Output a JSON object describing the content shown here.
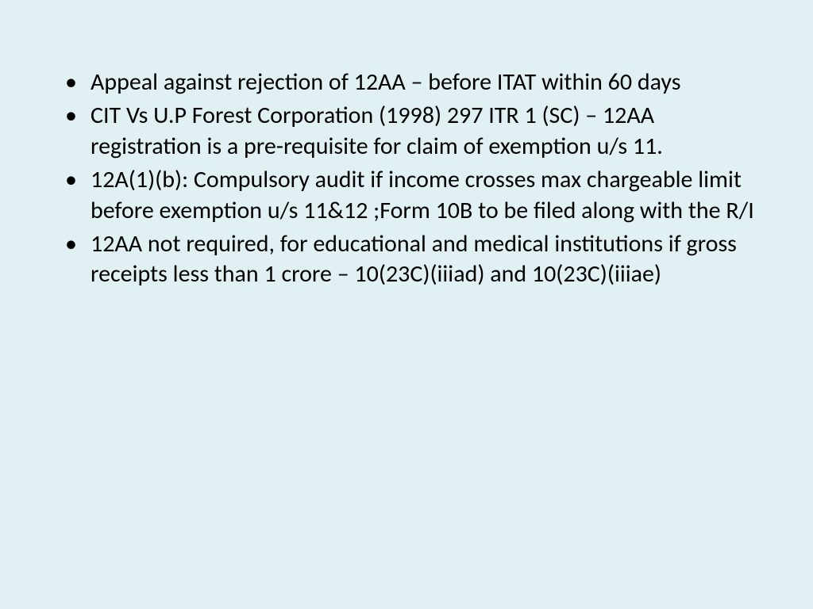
{
  "slide": {
    "background_color": "#e1f1f3",
    "text_color": "#000000",
    "font_family": "Calibri",
    "bullet_fontsize": 30,
    "bullets": [
      "Appeal against rejection of 12AA – before ITAT within 60 days",
      "CIT Vs U.P Forest Corporation (1998) 297 ITR 1 (SC) – 12AA registration is a pre-requisite for claim of exemption u/s 11.",
      "12A(1)(b): Compulsory audit if income crosses max chargeable limit before exemption u/s 11&12 ;Form 10B to be filed along with the R/I",
      "12AA not required, for educational and medical institutions if gross receipts less than 1 crore – 10(23C)(iiiad) and 10(23C)(iiiae)"
    ]
  }
}
